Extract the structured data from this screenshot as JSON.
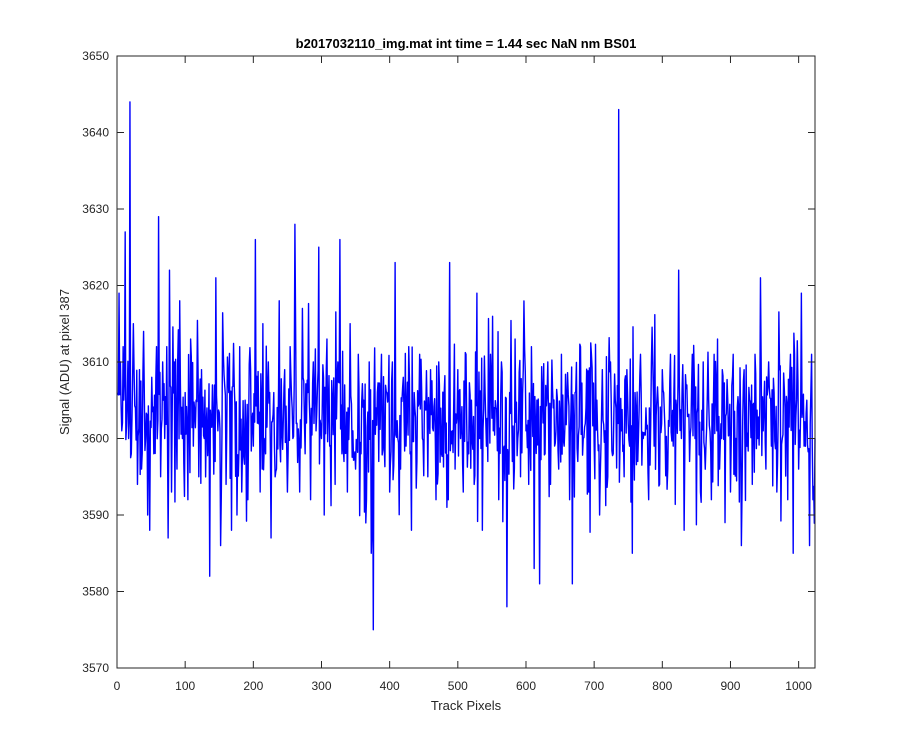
{
  "chart_data": {
    "type": "line",
    "title": "b2017032110_img.mat int time = 1.44 sec  NaN nm BS01",
    "xlabel": "Track Pixels",
    "ylabel": "Signal (ADU) at pixel 387",
    "xlim": [
      0,
      1024
    ],
    "ylim": [
      3570,
      3650
    ],
    "xticks": [
      0,
      100,
      200,
      300,
      400,
      500,
      600,
      700,
      800,
      900,
      1000
    ],
    "yticks": [
      3570,
      3580,
      3590,
      3600,
      3610,
      3620,
      3630,
      3640,
      3650
    ],
    "grid": false,
    "line_color": "#0000ff",
    "series": [
      {
        "name": "",
        "x_start": 1,
        "x_step": 1,
        "anchors": [
          [
            1,
            3606
          ],
          [
            3,
            3619
          ],
          [
            5,
            3610
          ],
          [
            7,
            3601
          ],
          [
            9,
            3612
          ],
          [
            12,
            3627
          ],
          [
            15,
            3605
          ],
          [
            17,
            3600
          ],
          [
            19,
            3644
          ],
          [
            21,
            3598
          ],
          [
            24,
            3615
          ],
          [
            27,
            3604
          ],
          [
            30,
            3594
          ],
          [
            33,
            3609
          ],
          [
            36,
            3596
          ],
          [
            39,
            3614
          ],
          [
            42,
            3600
          ],
          [
            45,
            3590
          ],
          [
            48,
            3588
          ],
          [
            51,
            3608
          ],
          [
            54,
            3598
          ],
          [
            58,
            3612
          ],
          [
            61,
            3629
          ],
          [
            64,
            3595
          ],
          [
            67,
            3610
          ],
          [
            70,
            3600
          ],
          [
            73,
            3612
          ],
          [
            75,
            3587
          ],
          [
            77,
            3622
          ],
          [
            80,
            3593
          ],
          [
            84,
            3610
          ],
          [
            88,
            3596
          ],
          [
            92,
            3618
          ],
          [
            96,
            3600
          ],
          [
            100,
            3606
          ],
          [
            104,
            3592
          ],
          [
            108,
            3613
          ],
          [
            112,
            3599
          ],
          [
            116,
            3605
          ],
          [
            120,
            3595
          ],
          [
            124,
            3609
          ],
          [
            128,
            3600
          ],
          [
            132,
            3604
          ],
          [
            136,
            3582
          ],
          [
            140,
            3607
          ],
          [
            144,
            3597
          ],
          [
            145,
            3621
          ],
          [
            148,
            3601
          ],
          [
            152,
            3586
          ],
          [
            156,
            3611
          ],
          [
            160,
            3594
          ],
          [
            164,
            3606
          ],
          [
            168,
            3588
          ],
          [
            172,
            3607
          ],
          [
            176,
            3590
          ],
          [
            180,
            3612
          ],
          [
            184,
            3598
          ],
          [
            188,
            3605
          ],
          [
            192,
            3592
          ],
          [
            196,
            3609
          ],
          [
            200,
            3599
          ],
          [
            203,
            3626
          ],
          [
            206,
            3602
          ],
          [
            210,
            3593
          ],
          [
            214,
            3615
          ],
          [
            218,
            3598
          ],
          [
            222,
            3610
          ],
          [
            226,
            3587
          ],
          [
            230,
            3606
          ],
          [
            234,
            3596
          ],
          [
            238,
            3618
          ],
          [
            242,
            3601
          ],
          [
            246,
            3609
          ],
          [
            250,
            3593
          ],
          [
            254,
            3612
          ],
          [
            258,
            3600
          ],
          [
            261,
            3628
          ],
          [
            264,
            3602
          ],
          [
            268,
            3593
          ],
          [
            272,
            3617
          ],
          [
            276,
            3598
          ],
          [
            280,
            3606
          ],
          [
            284,
            3592
          ],
          [
            288,
            3610
          ],
          [
            292,
            3601
          ],
          [
            296,
            3625
          ],
          [
            300,
            3600
          ],
          [
            304,
            3590
          ],
          [
            308,
            3613
          ],
          [
            312,
            3599
          ],
          [
            316,
            3605
          ],
          [
            320,
            3594
          ],
          [
            324,
            3610
          ],
          [
            327,
            3626
          ],
          [
            330,
            3598
          ],
          [
            334,
            3607
          ],
          [
            338,
            3593
          ],
          [
            342,
            3615
          ],
          [
            346,
            3601
          ],
          [
            350,
            3596
          ],
          [
            354,
            3611
          ],
          [
            358,
            3598
          ],
          [
            362,
            3605
          ],
          [
            366,
            3592
          ],
          [
            370,
            3610
          ],
          [
            373,
            3585
          ],
          [
            376,
            3575
          ],
          [
            380,
            3604
          ],
          [
            384,
            3597
          ],
          [
            388,
            3611
          ],
          [
            392,
            3599
          ],
          [
            396,
            3606
          ],
          [
            400,
            3593
          ],
          [
            404,
            3610
          ],
          [
            408,
            3623
          ],
          [
            412,
            3600
          ],
          [
            416,
            3596
          ],
          [
            420,
            3608
          ],
          [
            424,
            3599
          ],
          [
            428,
            3612
          ],
          [
            432,
            3588
          ],
          [
            436,
            3606
          ],
          [
            440,
            3597
          ],
          [
            444,
            3611
          ],
          [
            448,
            3600
          ],
          [
            452,
            3604
          ],
          [
            456,
            3595
          ],
          [
            460,
            3609
          ],
          [
            464,
            3601
          ],
          [
            468,
            3592
          ],
          [
            472,
            3610
          ],
          [
            476,
            3598
          ],
          [
            480,
            3606
          ],
          [
            484,
            3591
          ],
          [
            488,
            3623
          ],
          [
            492,
            3601
          ],
          [
            496,
            3596
          ],
          [
            500,
            3609
          ],
          [
            504,
            3600
          ],
          [
            508,
            3593
          ],
          [
            512,
            3611
          ],
          [
            516,
            3598
          ],
          [
            520,
            3605
          ],
          [
            524,
            3594
          ],
          [
            528,
            3619
          ],
          [
            532,
            3600
          ],
          [
            536,
            3588
          ],
          [
            540,
            3606
          ],
          [
            544,
            3597
          ],
          [
            548,
            3611
          ],
          [
            552,
            3601
          ],
          [
            556,
            3604
          ],
          [
            560,
            3592
          ],
          [
            564,
            3610
          ],
          [
            568,
            3599
          ],
          [
            572,
            3578
          ],
          [
            576,
            3606
          ],
          [
            580,
            3597
          ],
          [
            584,
            3613
          ],
          [
            588,
            3600
          ],
          [
            592,
            3595
          ],
          [
            596,
            3609
          ],
          [
            600,
            3601
          ],
          [
            604,
            3594
          ],
          [
            608,
            3612
          ],
          [
            612,
            3583
          ],
          [
            616,
            3605
          ],
          [
            620,
            3581
          ],
          [
            624,
            3606
          ],
          [
            628,
            3598
          ],
          [
            632,
            3610
          ],
          [
            636,
            3594
          ],
          [
            640,
            3604
          ],
          [
            644,
            3601
          ],
          [
            648,
            3596
          ],
          [
            652,
            3611
          ],
          [
            656,
            3599
          ],
          [
            660,
            3605
          ],
          [
            664,
            3592
          ],
          [
            668,
            3581
          ],
          [
            672,
            3606
          ],
          [
            676,
            3597
          ],
          [
            680,
            3612
          ],
          [
            684,
            3600
          ],
          [
            688,
            3604
          ],
          [
            692,
            3593
          ],
          [
            696,
            3611
          ],
          [
            700,
            3599
          ],
          [
            704,
            3605
          ],
          [
            708,
            3590
          ],
          [
            712,
            3609
          ],
          [
            716,
            3601
          ],
          [
            720,
            3595
          ],
          [
            724,
            3610
          ],
          [
            728,
            3598
          ],
          [
            732,
            3604
          ],
          [
            736,
            3643
          ],
          [
            740,
            3601
          ],
          [
            744,
            3595
          ],
          [
            748,
            3609
          ],
          [
            752,
            3599
          ],
          [
            756,
            3585
          ],
          [
            760,
            3606
          ],
          [
            764,
            3597
          ],
          [
            768,
            3611
          ],
          [
            772,
            3600
          ],
          [
            776,
            3604
          ],
          [
            780,
            3592
          ],
          [
            784,
            3610
          ],
          [
            788,
            3599
          ],
          [
            792,
            3605
          ],
          [
            796,
            3594
          ],
          [
            800,
            3609
          ],
          [
            804,
            3601
          ],
          [
            808,
            3596
          ],
          [
            812,
            3611
          ],
          [
            816,
            3599
          ],
          [
            820,
            3605
          ],
          [
            824,
            3622
          ],
          [
            828,
            3600
          ],
          [
            832,
            3588
          ],
          [
            836,
            3607
          ],
          [
            840,
            3597
          ],
          [
            844,
            3611
          ],
          [
            848,
            3600
          ],
          [
            852,
            3604
          ],
          [
            856,
            3593
          ],
          [
            860,
            3610
          ],
          [
            864,
            3599
          ],
          [
            868,
            3605
          ],
          [
            872,
            3592
          ],
          [
            876,
            3611
          ],
          [
            880,
            3601
          ],
          [
            884,
            3596
          ],
          [
            888,
            3609
          ],
          [
            892,
            3589
          ],
          [
            896,
            3605
          ],
          [
            900,
            3593
          ],
          [
            904,
            3611
          ],
          [
            908,
            3600
          ],
          [
            912,
            3604
          ],
          [
            916,
            3586
          ],
          [
            920,
            3609
          ],
          [
            924,
            3599
          ],
          [
            928,
            3605
          ],
          [
            932,
            3594
          ],
          [
            936,
            3611
          ],
          [
            940,
            3600
          ],
          [
            944,
            3621
          ],
          [
            948,
            3601
          ],
          [
            952,
            3596
          ],
          [
            956,
            3610
          ],
          [
            960,
            3599
          ],
          [
            964,
            3606
          ],
          [
            968,
            3593
          ],
          [
            972,
            3609
          ],
          [
            976,
            3600
          ],
          [
            980,
            3604
          ],
          [
            984,
            3592
          ],
          [
            988,
            3611
          ],
          [
            992,
            3585
          ],
          [
            996,
            3603
          ],
          [
            1000,
            3596
          ],
          [
            1004,
            3619
          ],
          [
            1008,
            3599
          ],
          [
            1012,
            3605
          ],
          [
            1016,
            3586
          ],
          [
            1019,
            3611
          ],
          [
            1021,
            3592
          ],
          [
            1024,
            3600
          ]
        ]
      }
    ]
  }
}
